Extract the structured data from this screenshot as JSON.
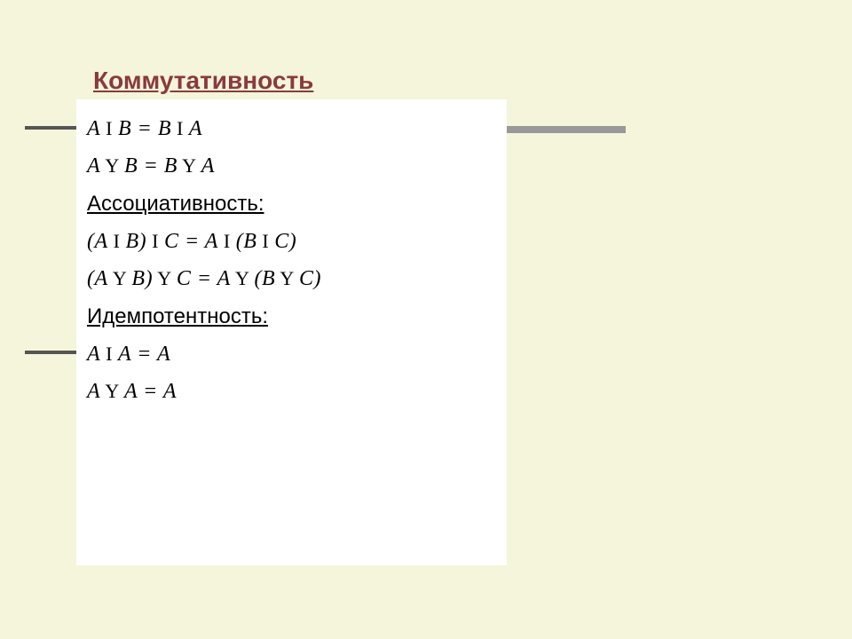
{
  "title": "Коммутативность",
  "formulas": {
    "comm1": "A",
    "comm1_op1": " I ",
    "comm1_b": "B = B",
    "comm1_op2": " I ",
    "comm1_c": "  A",
    "comm2": "A",
    "comm2_op1": " Y ",
    "comm2_b": "B = B",
    "comm2_op2": " Y ",
    "comm2_c": " A",
    "assoc_label": "Ассоциативность:",
    "assoc1_a": "(A",
    "assoc1_op1": " I ",
    "assoc1_b": " B)",
    "assoc1_op2": " I ",
    "assoc1_c": " C = A",
    "assoc1_op3": " I ",
    "assoc1_d": " (B",
    "assoc1_op4": " I ",
    "assoc1_e": " C)",
    "assoc2_a": "(A",
    "assoc2_op1": " Y ",
    "assoc2_b": "B)",
    "assoc2_op2": " Y ",
    "assoc2_c": "C  = A",
    "assoc2_op3": " Y ",
    "assoc2_d": " (B",
    "assoc2_op4": " Y ",
    "assoc2_e": " C)",
    "idem_label": "Идемпотентность:",
    "idem1_a": "A",
    "idem1_op": " I ",
    "idem1_b": "  A = A",
    "idem2_a": "A",
    "idem2_op": " Y ",
    "idem2_b": " A = A"
  },
  "colors": {
    "background": "#f5f5dc",
    "content_bg": "#ffffff",
    "title_color": "#8b3a3a",
    "bar_color": "#555555",
    "right_bar_color": "#999999",
    "text_color": "#000000"
  }
}
